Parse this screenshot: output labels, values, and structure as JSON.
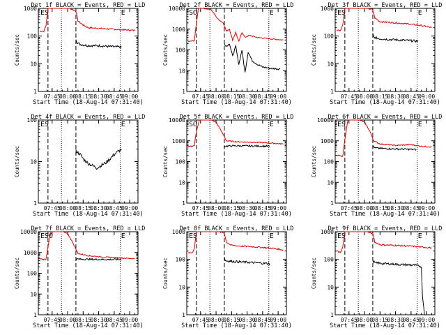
{
  "figure": {
    "panel_count": 9,
    "xtick_labels": [
      "07:45",
      "08:00",
      "08:15",
      "08:30",
      "08:45",
      "09:00"
    ],
    "ytick_labels": [
      "1",
      "10",
      "100",
      "1000",
      "10000"
    ],
    "xlabel": "Start Time (18-Aug-14 07:31:40)",
    "ylabel": "Counts/sec",
    "colors": {
      "events": "#000000",
      "lld": "#dd0000",
      "frame": "#000000"
    }
  },
  "chart_data": [
    {
      "type": "line",
      "title": "Det 1f BLACK = Events, RED = LLD",
      "xlabel": "Start Time (18-Aug-14 07:31:40)",
      "ylabel": "Counts/sec",
      "xlim": [
        "07:31:40",
        "09:08"
      ],
      "ylim": [
        1,
        1000
      ],
      "ylog": true,
      "yticks": [
        1,
        10,
        100,
        1000
      ],
      "markers": [
        "E",
        "S",
        "E"
      ],
      "dashed_lines": [
        "07:41",
        "08:08"
      ],
      "dotted_lines": [
        "07:54",
        "08:51"
      ],
      "series": [
        {
          "name": "LLD",
          "color": "#dd0000",
          "x": [
            "07:33",
            "07:37",
            "07:39",
            "07:41",
            "07:46",
            "08:02",
            "08:08",
            "08:10",
            "08:15",
            "08:20",
            "08:30",
            "08:40",
            "08:50",
            "09:05"
          ],
          "y": [
            150,
            150,
            230,
            1000,
            1000,
            1000,
            800,
            350,
            250,
            200,
            190,
            180,
            170,
            160
          ]
        },
        {
          "name": "Events",
          "color": "#000000",
          "x": [
            "08:08",
            "08:09",
            "08:12",
            "08:20",
            "08:30",
            "08:40",
            "08:52"
          ],
          "y": [
            80,
            60,
            50,
            45,
            45,
            42,
            40
          ]
        }
      ]
    },
    {
      "type": "line",
      "title": "Det 2f BLACK = Events, RED = LLD",
      "xlabel": "Start Time (18-Aug-14 07:31:40)",
      "ylabel": "Counts/sec",
      "xlim": [
        "07:31:40",
        "09:08"
      ],
      "ylim": [
        1,
        10000
      ],
      "ylog": true,
      "yticks": [
        1,
        10,
        100,
        1000,
        10000
      ],
      "markers": [
        "S",
        "O",
        "E"
      ],
      "dashed_lines": [
        "07:41",
        "08:08"
      ],
      "dotted_lines": [
        "07:54",
        "08:51"
      ],
      "series": [
        {
          "name": "LLD",
          "color": "#dd0000",
          "x": [
            "07:33",
            "07:39",
            "07:41",
            "07:43",
            "07:47",
            "07:55",
            "08:02",
            "08:07",
            "08:10",
            "08:13",
            "08:16",
            "08:19",
            "08:22",
            "08:25",
            "08:28",
            "08:32",
            "08:40",
            "08:50",
            "09:05"
          ],
          "y": [
            250,
            280,
            2000,
            10000,
            10000,
            9000,
            3000,
            2000,
            800,
            1000,
            300,
            700,
            250,
            700,
            400,
            500,
            400,
            350,
            300
          ]
        },
        {
          "name": "Events",
          "color": "#000000",
          "x": [
            "08:08",
            "08:10",
            "08:13",
            "08:16",
            "08:19",
            "08:22",
            "08:25",
            "08:28",
            "08:31",
            "08:35",
            "08:40",
            "08:45",
            "08:52",
            "09:02"
          ],
          "y": [
            200,
            150,
            200,
            50,
            150,
            20,
            100,
            8,
            80,
            30,
            20,
            15,
            13,
            12
          ]
        }
      ]
    },
    {
      "type": "line",
      "title": "Det 3f BLACK = Events, RED = LLD",
      "xlabel": "Start Time (18-Aug-14 07:31:40)",
      "ylabel": "Counts/sec",
      "xlim": [
        "07:31:40",
        "09:08"
      ],
      "ylim": [
        1,
        1000
      ],
      "ylog": true,
      "yticks": [
        1,
        10,
        100,
        1000
      ],
      "markers": [
        "E",
        "S",
        "E"
      ],
      "dashed_lines": [
        "07:41",
        "08:08"
      ],
      "dotted_lines": [
        "07:54",
        "08:51"
      ],
      "series": [
        {
          "name": "LLD",
          "color": "#dd0000",
          "x": [
            "07:33",
            "07:37",
            "07:39",
            "07:41",
            "07:46",
            "08:02",
            "08:08",
            "08:10",
            "08:15",
            "08:25",
            "08:40",
            "08:55",
            "09:05"
          ],
          "y": [
            170,
            160,
            250,
            1000,
            1000,
            1000,
            900,
            450,
            330,
            310,
            280,
            240,
            200
          ]
        },
        {
          "name": "Events",
          "color": "#000000",
          "x": [
            "08:08",
            "08:09",
            "08:15",
            "08:25",
            "08:40",
            "08:52"
          ],
          "y": [
            120,
            90,
            80,
            75,
            70,
            65
          ]
        }
      ]
    },
    {
      "type": "line",
      "title": "Det 4f BLACK = Events, RED = LLD",
      "xlabel": "Start Time (18-Aug-14 07:31:40)",
      "ylabel": "Counts/sec",
      "xlim": [
        "07:31:40",
        "09:08"
      ],
      "ylim": [
        1,
        100
      ],
      "ylog": true,
      "yticks": [
        1,
        10,
        100
      ],
      "markers": [
        "E",
        "S",
        "E"
      ],
      "dashed_lines": [
        "07:41",
        "08:08"
      ],
      "dotted_lines": [
        "07:54",
        "08:51"
      ],
      "series": [
        {
          "name": "Events",
          "color": "#000000",
          "x": [
            "08:08",
            "08:12",
            "08:16",
            "08:20",
            "08:24",
            "08:28",
            "08:32",
            "08:36",
            "08:40",
            "08:44",
            "08:48",
            "08:52"
          ],
          "y": [
            18,
            15,
            11,
            9,
            8,
            7,
            8,
            9,
            11,
            14,
            17,
            20
          ]
        }
      ]
    },
    {
      "type": "line",
      "title": "Det 5f BLACK = Events, RED = LLD",
      "xlabel": "Start Time (18-Aug-14 07:31:40)",
      "ylabel": "Counts/sec",
      "xlim": [
        "07:31:40",
        "09:08"
      ],
      "ylim": [
        1,
        10000
      ],
      "ylog": true,
      "yticks": [
        1,
        10,
        100,
        1000,
        10000
      ],
      "markers": [
        "S",
        "O",
        "E"
      ],
      "dashed_lines": [
        "07:41",
        "08:08"
      ],
      "dotted_lines": [
        "07:54",
        "08:51"
      ],
      "series": [
        {
          "name": "LLD",
          "color": "#dd0000",
          "x": [
            "07:33",
            "07:39",
            "07:41",
            "07:44",
            "07:55",
            "08:00",
            "08:05",
            "08:10",
            "08:20",
            "08:35",
            "08:50",
            "09:05"
          ],
          "y": [
            500,
            600,
            3000,
            10000,
            10000,
            8000,
            3000,
            1000,
            900,
            850,
            800,
            700
          ]
        },
        {
          "name": "Events",
          "color": "#000000",
          "x": [
            "08:08",
            "08:09",
            "08:20",
            "08:35",
            "08:52"
          ],
          "y": [
            500,
            550,
            580,
            560,
            550
          ]
        }
      ]
    },
    {
      "type": "line",
      "title": "Det 6f BLACK = Events, RED = LLD",
      "xlabel": "Start Time (18-Aug-14 07:31:40)",
      "ylabel": "Counts/sec",
      "xlim": [
        "07:31:40",
        "09:08"
      ],
      "ylim": [
        1,
        10000
      ],
      "ylog": true,
      "yticks": [
        1,
        10,
        100,
        1000,
        10000
      ],
      "markers": [
        "E",
        "S",
        "E"
      ],
      "dashed_lines": [
        "07:41",
        "08:08"
      ],
      "dotted_lines": [
        "07:54",
        "08:51"
      ],
      "series": [
        {
          "name": "LLD",
          "color": "#dd0000",
          "x": [
            "07:33",
            "07:39",
            "07:41",
            "07:44",
            "07:55",
            "08:00",
            "08:05",
            "08:09",
            "08:15",
            "08:30",
            "08:45",
            "08:55",
            "09:05"
          ],
          "y": [
            200,
            180,
            1200,
            10000,
            10000,
            8000,
            3000,
            1000,
            700,
            600,
            650,
            550,
            500
          ]
        },
        {
          "name": "Events",
          "color": "#000000",
          "x": [
            "08:08",
            "08:10",
            "08:20",
            "08:35",
            "08:50"
          ],
          "y": [
            600,
            450,
            420,
            400,
            380
          ]
        }
      ]
    },
    {
      "type": "line",
      "title": "Det 7f BLACK = Events, RED = LLD",
      "xlabel": "Start Time (18-Aug-14 07:31:40)",
      "ylabel": "Counts/sec",
      "xlim": [
        "07:31:40",
        "09:08"
      ],
      "ylim": [
        1,
        10000
      ],
      "ylog": true,
      "yticks": [
        1,
        10,
        100,
        1000,
        10000
      ],
      "markers": [
        "E",
        "S",
        "O",
        "E"
      ],
      "dashed_lines": [
        "07:41",
        "08:08"
      ],
      "dotted_lines": [
        "07:54",
        "08:51"
      ],
      "series": [
        {
          "name": "LLD",
          "color": "#dd0000",
          "x": [
            "07:33",
            "07:39",
            "07:41",
            "07:44",
            "07:55",
            "08:00",
            "08:05",
            "08:10",
            "08:20",
            "08:35",
            "08:50",
            "09:05"
          ],
          "y": [
            500,
            450,
            2000,
            10000,
            10000,
            8000,
            3000,
            900,
            700,
            600,
            550,
            500
          ]
        },
        {
          "name": "Events",
          "color": "#000000",
          "x": [
            "08:08",
            "08:09",
            "08:20",
            "08:35",
            "08:52"
          ],
          "y": [
            500,
            480,
            470,
            460,
            460
          ]
        }
      ]
    },
    {
      "type": "line",
      "title": "Det 8f BLACK = Events, RED = LLD",
      "xlabel": "Start Time (18-Aug-14 07:31:40)",
      "ylabel": "Counts/sec",
      "xlim": [
        "07:31:40",
        "09:08"
      ],
      "ylim": [
        1,
        1000
      ],
      "ylog": true,
      "yticks": [
        1,
        10,
        100,
        1000
      ],
      "markers": [
        "E",
        "S",
        "E"
      ],
      "dashed_lines": [
        "07:41",
        "08:08"
      ],
      "dotted_lines": [
        "07:54",
        "08:51"
      ],
      "series": [
        {
          "name": "LLD",
          "color": "#dd0000",
          "x": [
            "07:33",
            "07:37",
            "07:39",
            "07:41",
            "07:46",
            "08:02",
            "08:08",
            "08:10",
            "08:15",
            "08:25",
            "08:40",
            "08:55",
            "09:05"
          ],
          "y": [
            180,
            170,
            260,
            1000,
            1000,
            1000,
            900,
            420,
            320,
            300,
            280,
            250,
            220
          ]
        },
        {
          "name": "Events",
          "color": "#000000",
          "x": [
            "08:08",
            "08:09",
            "08:15",
            "08:25",
            "08:40",
            "08:52"
          ],
          "y": [
            120,
            90,
            85,
            80,
            75,
            70
          ]
        }
      ]
    },
    {
      "type": "line",
      "title": "Det 9f BLACK = Events, RED = LLD",
      "xlabel": "Start Time (18-Aug-14 07:31:40)",
      "ylabel": "Counts/sec",
      "xlim": [
        "07:31:40",
        "09:08"
      ],
      "ylim": [
        1,
        1000
      ],
      "ylog": true,
      "yticks": [
        1,
        10,
        100,
        1000
      ],
      "markers": [
        "E",
        "S",
        "E"
      ],
      "dashed_lines": [
        "07:41",
        "08:08"
      ],
      "dotted_lines": [
        "07:54",
        "08:51"
      ],
      "series": [
        {
          "name": "LLD",
          "color": "#dd0000",
          "x": [
            "07:33",
            "07:37",
            "07:39",
            "07:41",
            "07:46",
            "08:02",
            "08:08",
            "08:10",
            "08:15",
            "08:30",
            "08:45",
            "09:05"
          ],
          "y": [
            200,
            180,
            280,
            1000,
            1000,
            1000,
            850,
            420,
            340,
            320,
            300,
            260
          ]
        },
        {
          "name": "Events",
          "color": "#000000",
          "x": [
            "08:08",
            "08:10",
            "08:20",
            "08:35",
            "08:48",
            "08:55",
            "08:56",
            "08:58"
          ],
          "y": [
            90,
            75,
            70,
            65,
            62,
            55,
            5,
            1
          ]
        }
      ]
    }
  ]
}
